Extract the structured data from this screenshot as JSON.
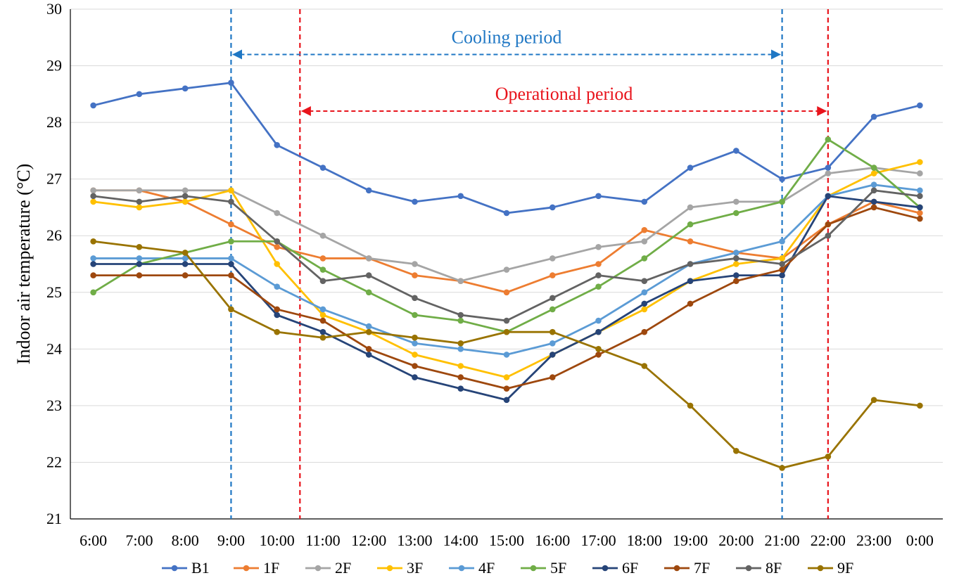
{
  "chart_data": {
    "type": "line",
    "title": "",
    "xlabel": "",
    "ylabel": "Indoor air temperature (°C)",
    "ylim": [
      21,
      30
    ],
    "yticks": [
      21,
      22,
      23,
      24,
      25,
      26,
      27,
      28,
      29,
      30
    ],
    "grid": "horizontal",
    "legend": "bottom",
    "categories": [
      "6:00",
      "7:00",
      "8:00",
      "9:00",
      "10:00",
      "11:00",
      "12:00",
      "13:00",
      "14:00",
      "15:00",
      "16:00",
      "17:00",
      "18:00",
      "19:00",
      "20:00",
      "21:00",
      "22:00",
      "23:00",
      "0:00"
    ],
    "series": [
      {
        "name": "B1",
        "color": "#4472c4",
        "values": [
          28.3,
          28.5,
          28.6,
          28.7,
          27.6,
          27.2,
          26.8,
          26.6,
          26.7,
          26.4,
          26.5,
          26.7,
          26.6,
          27.2,
          27.5,
          27.0,
          27.2,
          28.1,
          28.3
        ]
      },
      {
        "name": "1F",
        "color": "#ed7d31",
        "values": [
          26.8,
          26.8,
          26.6,
          26.2,
          25.8,
          25.6,
          25.6,
          25.3,
          25.2,
          25.0,
          25.3,
          25.5,
          26.1,
          25.9,
          25.7,
          25.6,
          26.2,
          26.6,
          26.4
        ]
      },
      {
        "name": "2F",
        "color": "#a5a5a5",
        "values": [
          26.8,
          26.8,
          26.8,
          26.8,
          26.4,
          26.0,
          25.6,
          25.5,
          25.2,
          25.4,
          25.6,
          25.8,
          25.9,
          26.5,
          26.6,
          26.6,
          27.1,
          27.2,
          27.1
        ]
      },
      {
        "name": "3F",
        "color": "#ffc000",
        "values": [
          26.6,
          26.5,
          26.6,
          26.8,
          25.5,
          24.6,
          24.3,
          23.9,
          23.7,
          23.5,
          23.9,
          24.3,
          24.7,
          25.2,
          25.5,
          25.6,
          26.7,
          27.1,
          27.3
        ]
      },
      {
        "name": "4F",
        "color": "#5b9bd5",
        "values": [
          25.6,
          25.6,
          25.6,
          25.6,
          25.1,
          24.7,
          24.4,
          24.1,
          24.0,
          23.9,
          24.1,
          24.5,
          25.0,
          25.5,
          25.7,
          25.9,
          26.7,
          26.9,
          26.8
        ]
      },
      {
        "name": "5F",
        "color": "#70ad47",
        "values": [
          25.0,
          25.5,
          25.7,
          25.9,
          25.9,
          25.4,
          25.0,
          24.6,
          24.5,
          24.3,
          24.7,
          25.1,
          25.6,
          26.2,
          26.4,
          26.6,
          27.7,
          27.2,
          26.5
        ]
      },
      {
        "name": "6F",
        "color": "#264478",
        "values": [
          25.5,
          25.5,
          25.5,
          25.5,
          24.6,
          24.3,
          23.9,
          23.5,
          23.3,
          23.1,
          23.9,
          24.3,
          24.8,
          25.2,
          25.3,
          25.3,
          26.7,
          26.6,
          26.5
        ]
      },
      {
        "name": "7F",
        "color": "#9e480e",
        "values": [
          25.3,
          25.3,
          25.3,
          25.3,
          24.7,
          24.5,
          24.0,
          23.7,
          23.5,
          23.3,
          23.5,
          23.9,
          24.3,
          24.8,
          25.2,
          25.4,
          26.2,
          26.5,
          26.3
        ]
      },
      {
        "name": "8F",
        "color": "#636363",
        "values": [
          26.7,
          26.6,
          26.7,
          26.6,
          25.9,
          25.2,
          25.3,
          24.9,
          24.6,
          24.5,
          24.9,
          25.3,
          25.2,
          25.5,
          25.6,
          25.5,
          26.0,
          26.8,
          26.7
        ]
      },
      {
        "name": "9F",
        "color": "#997300",
        "values": [
          25.9,
          25.8,
          25.7,
          24.7,
          24.3,
          24.2,
          24.3,
          24.2,
          24.1,
          24.3,
          24.3,
          24.0,
          23.7,
          23.0,
          22.2,
          21.9,
          22.1,
          23.1,
          23.0
        ]
      }
    ],
    "annotations": [
      {
        "text": "Cooling period",
        "from": "9:00",
        "to": "21:00",
        "color": "#1f77c4",
        "style": "dashed",
        "y": 29.2
      },
      {
        "text": "Operational period",
        "from": "10:30",
        "to": "22:00",
        "color": "#e8141c",
        "style": "dashed",
        "y": 28.2
      }
    ],
    "vlines": [
      {
        "x": "9:00",
        "color": "#1f77c4"
      },
      {
        "x": "21:00",
        "color": "#1f77c4"
      },
      {
        "x": "10:30",
        "color": "#e8141c"
      },
      {
        "x": "22:00",
        "color": "#e8141c"
      }
    ]
  }
}
